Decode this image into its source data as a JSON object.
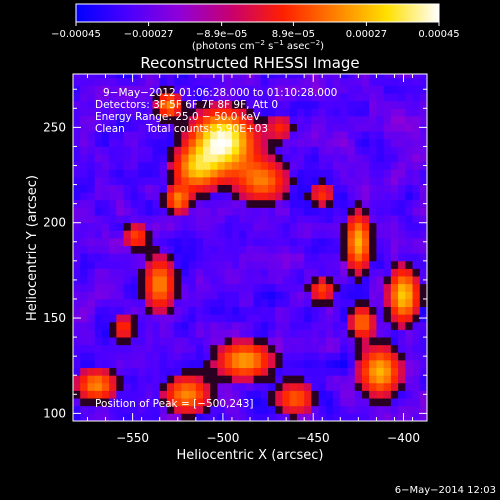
{
  "chart_data": {
    "type": "heatmap",
    "title": "Reconstructed RHESSI Image",
    "xlabel": "Heliocentric X (arcsec)",
    "ylabel": "Heliocentric Y (arcsec)",
    "xlim": [
      -583,
      -387
    ],
    "ylim": [
      96,
      278
    ],
    "x_ticks": [
      -550,
      -500,
      -450,
      -400
    ],
    "y_ticks": [
      100,
      150,
      200,
      250
    ],
    "x_tick_labels": [
      "−550",
      "−500",
      "−450",
      "−400"
    ],
    "y_tick_labels": [
      "100",
      "150",
      "200",
      "250"
    ],
    "colorbar": {
      "range": [
        -0.00045,
        0.00045
      ],
      "ticks": [
        -0.00045,
        -0.00027,
        -8.9e-05,
        8.9e-05,
        0.00027,
        0.00045
      ],
      "tick_labels": [
        "−0.00045",
        "−0.00027",
        "−8.9e−05",
        "8.9e−05",
        "0.00027",
        "0.00045"
      ],
      "units_prefix": "(photons cm",
      "units_exp1": "−2",
      "units_mid": " s",
      "units_exp2": "−1",
      "units_mid2": " asec",
      "units_exp3": "−2",
      "units_suffix": ")",
      "colormap": [
        "#0000ff",
        "#4a00ff",
        "#9000d8",
        "#c8006e",
        "#ff2000",
        "#ff8000",
        "#ffe000",
        "#ffffff"
      ]
    },
    "annotations": {
      "time_range": "9−May−2012 01:06:28.000 to 01:10:28.000",
      "detectors": "Detectors: 3F 5F 6F 7F 8F 9F, Att 0",
      "energy_range": "Energy Range: 25.0 − 50.0 keV",
      "algorithm": "Clean",
      "total_counts": "Total counts: 5.90E+03",
      "peak_position": "Position of Peak = [−500,243]"
    },
    "peak": [
      -500,
      243
    ],
    "sources": [
      {
        "x": -500,
        "y": 243,
        "sx": 12,
        "sy": 11,
        "amp": 1.0
      },
      {
        "x": -515,
        "y": 228,
        "sx": 9,
        "sy": 8,
        "amp": 0.6
      },
      {
        "x": -478,
        "y": 222,
        "sx": 10,
        "sy": 8,
        "amp": 0.55
      },
      {
        "x": -530,
        "y": 262,
        "sx": 5,
        "sy": 5,
        "amp": 0.6
      },
      {
        "x": -525,
        "y": 212,
        "sx": 5,
        "sy": 5,
        "amp": 0.55
      },
      {
        "x": -535,
        "y": 168,
        "sx": 6,
        "sy": 10,
        "amp": 0.6
      },
      {
        "x": -548,
        "y": 193,
        "sx": 5,
        "sy": 5,
        "amp": 0.45
      },
      {
        "x": -555,
        "y": 145,
        "sx": 5,
        "sy": 5,
        "amp": 0.4
      },
      {
        "x": -570,
        "y": 115,
        "sx": 8,
        "sy": 6,
        "amp": 0.6
      },
      {
        "x": -520,
        "y": 110,
        "sx": 9,
        "sy": 7,
        "amp": 0.6
      },
      {
        "x": -488,
        "y": 128,
        "sx": 11,
        "sy": 7,
        "amp": 0.65
      },
      {
        "x": -460,
        "y": 108,
        "sx": 8,
        "sy": 6,
        "amp": 0.5
      },
      {
        "x": -425,
        "y": 190,
        "sx": 5,
        "sy": 11,
        "amp": 0.7
      },
      {
        "x": -445,
        "y": 165,
        "sx": 5,
        "sy": 5,
        "amp": 0.45
      },
      {
        "x": -423,
        "y": 148,
        "sx": 5,
        "sy": 6,
        "amp": 0.55
      },
      {
        "x": -400,
        "y": 162,
        "sx": 6,
        "sy": 10,
        "amp": 0.75
      },
      {
        "x": -413,
        "y": 122,
        "sx": 8,
        "sy": 9,
        "amp": 0.7
      },
      {
        "x": -445,
        "y": 215,
        "sx": 5,
        "sy": 5,
        "amp": 0.4
      },
      {
        "x": -468,
        "y": 250,
        "sx": 5,
        "sy": 5,
        "amp": 0.35
      }
    ]
  },
  "footer": {
    "timestamp": "6−May−2014 12:03"
  }
}
